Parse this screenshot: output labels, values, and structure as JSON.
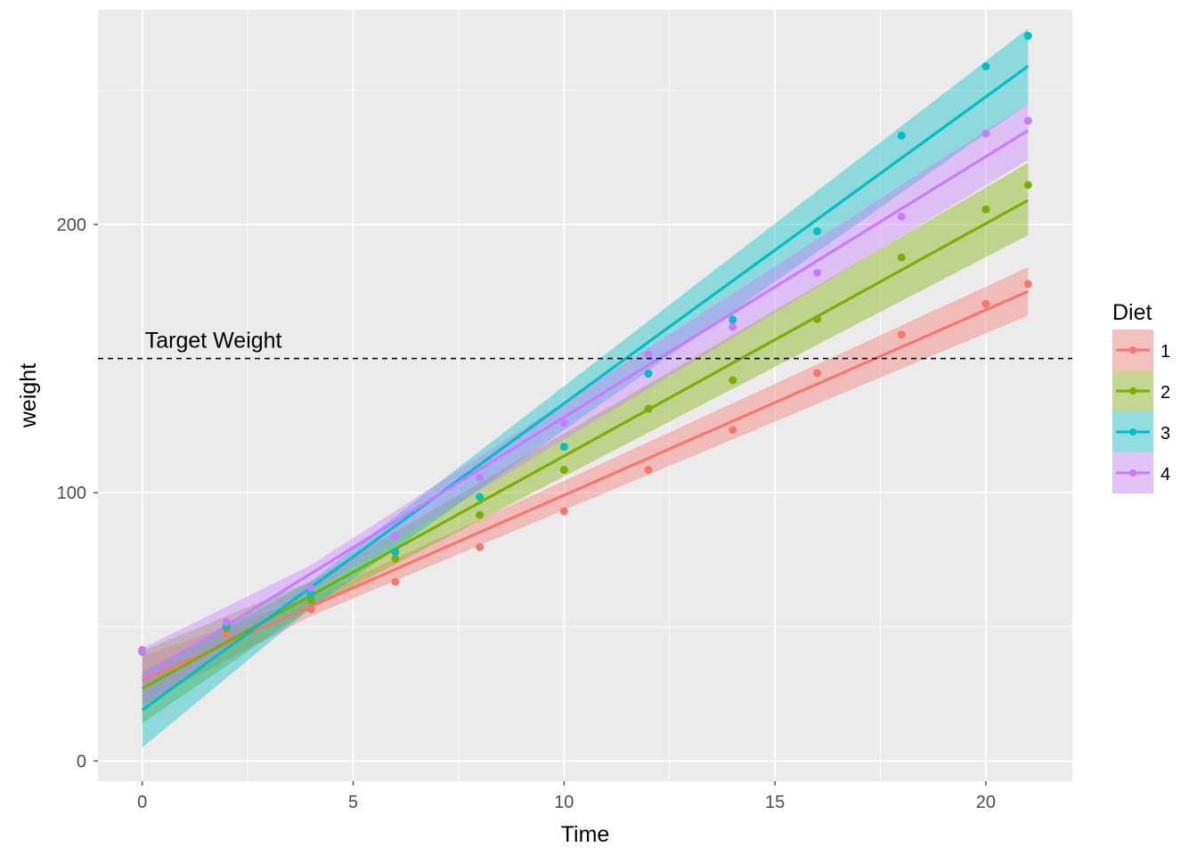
{
  "chart_data": {
    "type": "scatter",
    "xlabel": "Time",
    "ylabel": "weight",
    "xlim": [
      -1.05,
      22.05
    ],
    "ylim": [
      -7.5,
      280
    ],
    "x_ticks": [
      0,
      5,
      10,
      15,
      20
    ],
    "x_tick_labels": [
      "0",
      "5",
      "10",
      "15",
      "20"
    ],
    "y_ticks": [
      0,
      100,
      200
    ],
    "y_tick_labels": [
      "0",
      "100",
      "200"
    ],
    "grid": true,
    "background": "#ebebeb",
    "legend": {
      "title": "Diet",
      "placement": "right"
    },
    "reference_line": {
      "y": 150,
      "style": "dashed",
      "label": "Target Weight",
      "label_x": 0
    },
    "series": [
      {
        "name": "1",
        "color": "#f8766d",
        "x": [
          0,
          2,
          4,
          6,
          8,
          10,
          12,
          14,
          16,
          18,
          20,
          21
        ],
        "y": [
          41.4,
          47.25,
          56.5,
          66.8,
          79.7,
          93.1,
          108.5,
          123.4,
          144.6,
          158.9,
          170.4,
          177.75
        ],
        "fit": [
          [
            0,
            30
          ],
          [
            21,
            175
          ]
        ],
        "band": [
          [
            0,
            21,
            39
          ],
          [
            4,
            54,
            61
          ],
          [
            21,
            166,
            184
          ]
        ]
      },
      {
        "name": "2",
        "color": "#7cae00",
        "x": [
          0,
          2,
          4,
          6,
          8,
          10,
          12,
          14,
          16,
          18,
          20,
          21
        ],
        "y": [
          40.7,
          49.4,
          59.8,
          75.4,
          91.7,
          108.5,
          131.3,
          141.9,
          164.7,
          187.7,
          205.6,
          214.7
        ],
        "fit": [
          [
            0,
            27
          ],
          [
            21,
            209
          ]
        ],
        "band": [
          [
            0,
            14,
            41
          ],
          [
            4,
            57,
            67
          ],
          [
            21,
            196,
            223
          ]
        ]
      },
      {
        "name": "3",
        "color": "#00bfc4",
        "x": [
          0,
          2,
          4,
          6,
          8,
          10,
          12,
          14,
          16,
          18,
          20,
          21
        ],
        "y": [
          40.8,
          50.4,
          62.2,
          77.9,
          98.4,
          117.1,
          144.4,
          164.5,
          197.4,
          233.1,
          258.9,
          270.3
        ],
        "fit": [
          [
            0,
            19
          ],
          [
            21,
            259
          ]
        ],
        "band": [
          [
            0,
            5,
            33
          ],
          [
            4,
            57,
            67
          ],
          [
            21,
            245,
            273
          ]
        ]
      },
      {
        "name": "4",
        "color": "#c77cff",
        "x": [
          0,
          2,
          4,
          6,
          8,
          10,
          12,
          14,
          16,
          18,
          20,
          21
        ],
        "y": [
          41,
          51.8,
          64.5,
          83.9,
          105.6,
          126,
          151.4,
          161.8,
          182,
          202.9,
          233.9,
          238.6
        ],
        "fit": [
          [
            0,
            31
          ],
          [
            21,
            235
          ]
        ],
        "band": [
          [
            0,
            20,
            42
          ],
          [
            4,
            63,
            73
          ],
          [
            21,
            224,
            245
          ]
        ]
      }
    ]
  }
}
